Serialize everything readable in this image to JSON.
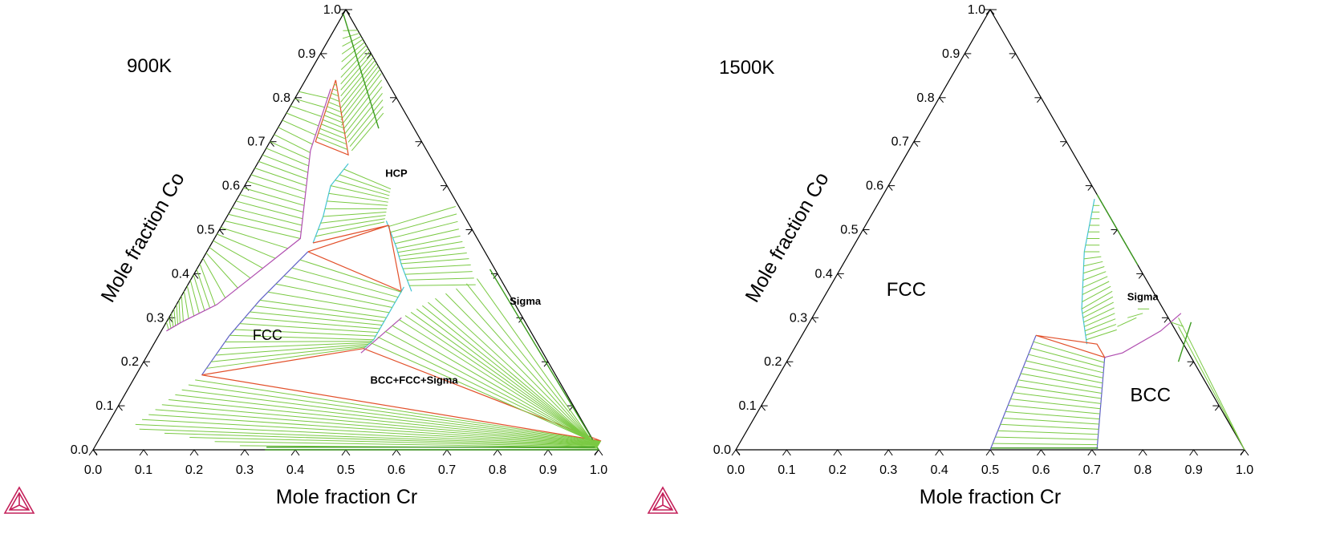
{
  "chart_data": [
    {
      "type": "ternary",
      "title": "900K",
      "xlabel": "Mole fraction Cr",
      "ylabel": "Mole fraction Co",
      "x_ticks": [
        "0.0",
        "0.1",
        "0.2",
        "0.3",
        "0.4",
        "0.5",
        "0.6",
        "0.7",
        "0.8",
        "0.9",
        "1.0"
      ],
      "y_ticks": [
        "0.0",
        "0.1",
        "0.2",
        "0.3",
        "0.4",
        "0.5",
        "0.6",
        "0.7",
        "0.8",
        "0.9",
        "1.0"
      ],
      "regions": [
        "HCP",
        "Sigma",
        "FCC",
        "BCC+FCC+Sigma"
      ]
    },
    {
      "type": "ternary",
      "title": "1500K",
      "xlabel": "Mole fraction Cr",
      "ylabel": "Mole fraction Co",
      "x_ticks": [
        "0.0",
        "0.1",
        "0.2",
        "0.3",
        "0.4",
        "0.5",
        "0.6",
        "0.7",
        "0.8",
        "0.9",
        "1.0"
      ],
      "y_ticks": [
        "0.0",
        "0.1",
        "0.2",
        "0.3",
        "0.4",
        "0.5",
        "0.6",
        "0.7",
        "0.8",
        "0.9",
        "1.0"
      ],
      "regions": [
        "FCC",
        "Sigma",
        "BCC"
      ]
    }
  ]
}
